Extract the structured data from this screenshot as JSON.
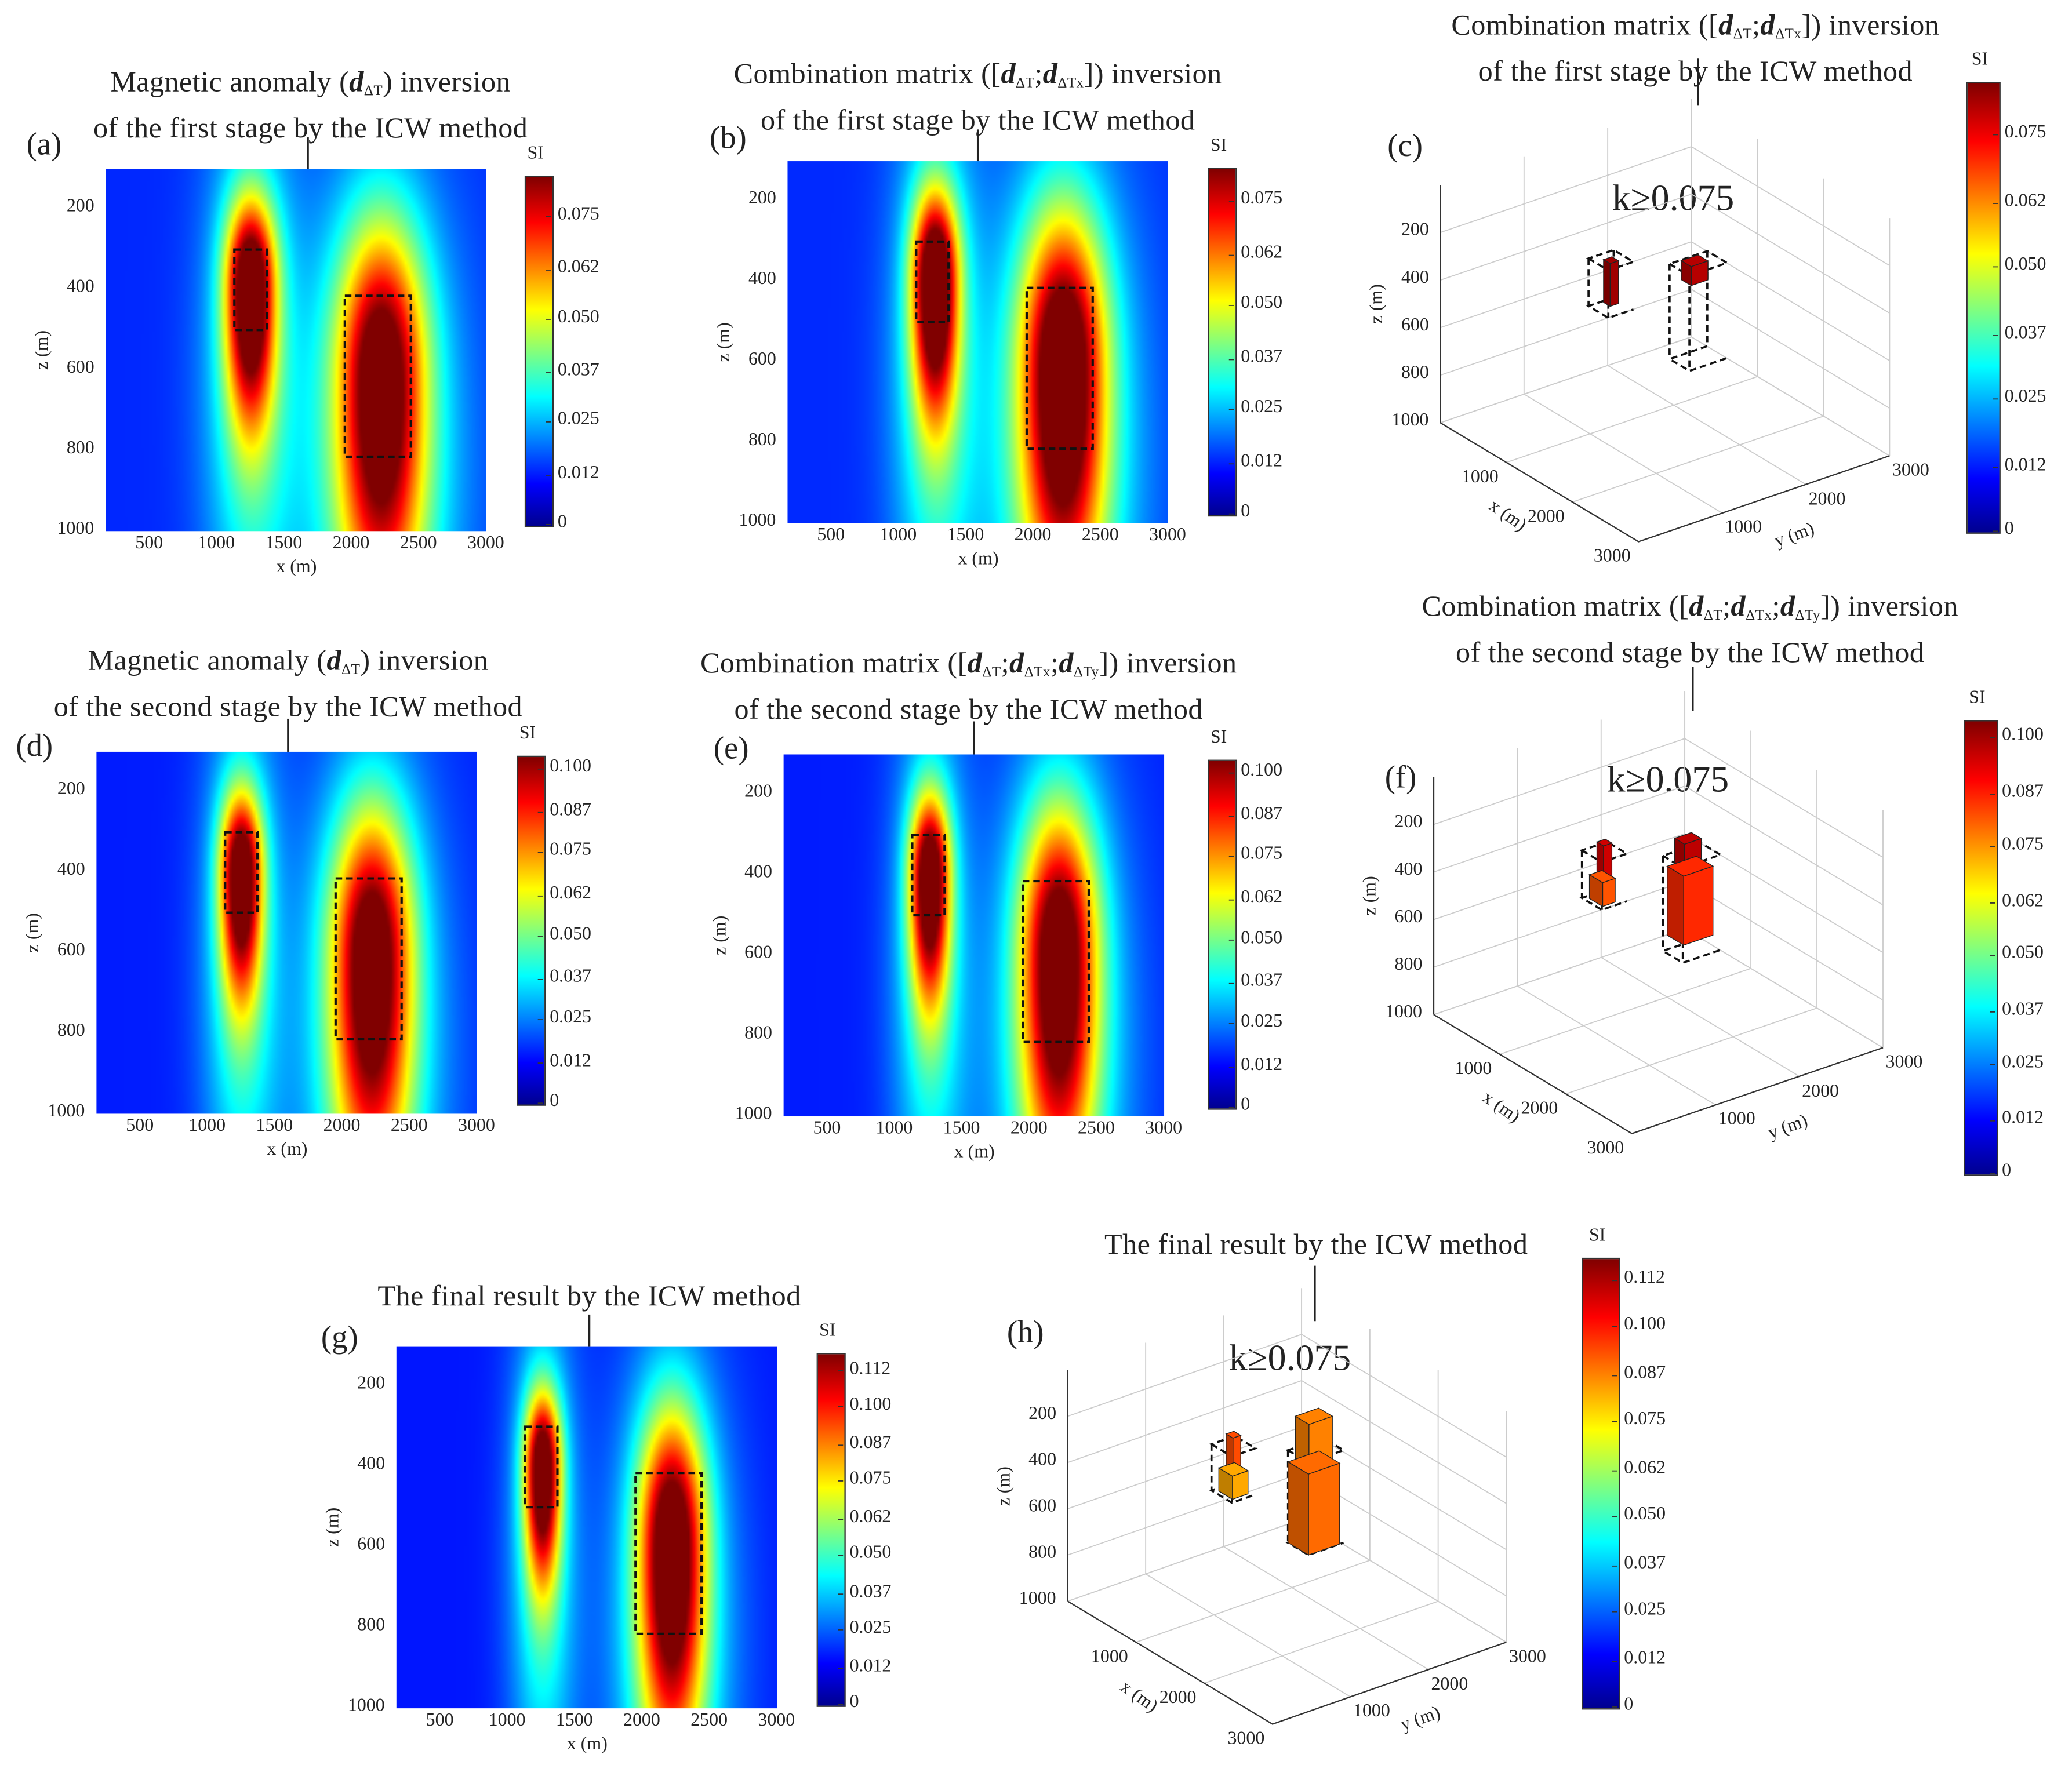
{
  "chart_data": [
    {
      "id": "a",
      "type": "heatmap",
      "label": "(a)",
      "title": [
        [
          {
            "t": "Magnetic anomaly ("
          },
          {
            "t": "d",
            "sub": "ΔT",
            "b": 1
          },
          {
            "t": ") inversion"
          }
        ],
        [
          {
            "t": "of the first stage by the ICW method"
          }
        ]
      ],
      "xlabel": "x (m)",
      "ylabel": "z (m)",
      "xlim": [
        175,
        3000
      ],
      "ylim": [
        100,
        1000
      ],
      "xticks": [
        "500",
        "1000",
        "1500",
        "2000",
        "2500",
        "3000"
      ],
      "yticks": [
        "200",
        "400",
        "600",
        "800",
        "1000"
      ],
      "colorbar": {
        "label": "SI",
        "ticks": [
          "0",
          "0.012",
          "0.025",
          "0.037",
          "0.050",
          "0.062",
          "0.075"
        ],
        "max": 0.085
      },
      "sources": [
        {
          "x": 1250,
          "z": 390,
          "sx": 130,
          "sz": 150,
          "amp": 0.08
        },
        {
          "x": 2220,
          "z": 610,
          "sx": 230,
          "sz": 260,
          "amp": 0.076
        }
      ],
      "boxes": [
        {
          "x": [
            1130,
            1370
          ],
          "z": [
            300,
            500
          ]
        },
        {
          "x": [
            1950,
            2440
          ],
          "z": [
            415,
            815
          ]
        }
      ]
    },
    {
      "id": "b",
      "type": "heatmap",
      "label": "(b)",
      "title": [
        [
          {
            "t": "Combination matrix (["
          },
          {
            "t": "d",
            "sub": "ΔT",
            "b": 1
          },
          {
            "t": ";"
          },
          {
            "t": "d",
            "sub": "ΔTx",
            "b": 1
          },
          {
            "t": "]) inversion"
          }
        ],
        [
          {
            "t": "of the first stage by the ICW method"
          }
        ]
      ],
      "xlabel": "x (m)",
      "ylabel": "z (m)",
      "xlim": [
        175,
        3000
      ],
      "ylim": [
        100,
        1000
      ],
      "xticks": [
        "500",
        "1000",
        "1500",
        "2000",
        "2500",
        "3000"
      ],
      "yticks": [
        "200",
        "400",
        "600",
        "800",
        "1000"
      ],
      "colorbar": {
        "label": "SI",
        "ticks": [
          "0",
          "0.012",
          "0.025",
          "0.037",
          "0.050",
          "0.062",
          "0.075"
        ],
        "max": 0.083
      },
      "sources": [
        {
          "x": 1270,
          "z": 390,
          "sx": 120,
          "sz": 150,
          "amp": 0.08
        },
        {
          "x": 2220,
          "z": 600,
          "sx": 220,
          "sz": 260,
          "amp": 0.078
        }
      ],
      "boxes": [
        {
          "x": [
            1130,
            1370
          ],
          "z": [
            300,
            500
          ]
        },
        {
          "x": [
            1950,
            2440
          ],
          "z": [
            415,
            815
          ]
        }
      ]
    },
    {
      "id": "c",
      "type": "3d-voxel",
      "label": "(c)",
      "title": [
        [
          {
            "t": "Combination matrix (["
          },
          {
            "t": "d",
            "sub": "ΔT",
            "b": 1
          },
          {
            "t": ";"
          },
          {
            "t": "d",
            "sub": "ΔTx",
            "b": 1
          },
          {
            "t": "]) inversion"
          }
        ],
        [
          {
            "t": "of the first stage by the ICW method"
          }
        ]
      ],
      "annotation": "k≥0.075",
      "xlabel": "x (m)",
      "ylabel": "y (m)",
      "zlabel": "z (m)",
      "xticks": [
        "1000",
        "2000",
        "3000"
      ],
      "yticks": [
        "1000",
        "2000",
        "3000"
      ],
      "zticks": [
        "200",
        "400",
        "600",
        "800",
        "1000"
      ],
      "colorbar": {
        "label": "SI",
        "ticks": [
          "0",
          "0.012",
          "0.025",
          "0.037",
          "0.050",
          "0.062",
          "0.075"
        ],
        "max": 0.085
      },
      "bodies": [
        {
          "x": [
            850,
            1150
          ],
          "y": [
            1100,
            1400
          ],
          "z": [
            300,
            500
          ]
        },
        {
          "x": [
            1000,
            1300
          ],
          "y": [
            1950,
            2400
          ],
          "z": [
            400,
            800
          ]
        }
      ],
      "voxels": [
        {
          "x": [
            950,
            1050
          ],
          "y": [
            1200,
            1300
          ],
          "z": [
            300,
            480
          ],
          "v": 0.082
        },
        {
          "x": [
            1050,
            1200
          ],
          "y": [
            2050,
            2250
          ],
          "z": [
            390,
            470
          ],
          "v": 0.08
        }
      ]
    },
    {
      "id": "d",
      "type": "heatmap",
      "label": "(d)",
      "title": [
        [
          {
            "t": "Magnetic anomaly ("
          },
          {
            "t": "d",
            "sub": "ΔT",
            "b": 1
          },
          {
            "t": ") inversion"
          }
        ],
        [
          {
            "t": "of the second stage by the ICW method"
          }
        ]
      ],
      "xlabel": "x (m)",
      "ylabel": "z (m)",
      "xlim": [
        175,
        3000
      ],
      "ylim": [
        100,
        1000
      ],
      "xticks": [
        "500",
        "1000",
        "1500",
        "2000",
        "2500",
        "3000"
      ],
      "yticks": [
        "200",
        "400",
        "600",
        "800",
        "1000"
      ],
      "colorbar": {
        "label": "SI",
        "ticks": [
          "0",
          "0.012",
          "0.025",
          "0.037",
          "0.050",
          "0.062",
          "0.075",
          "0.087",
          "0.100"
        ],
        "max": 0.104
      },
      "sources": [
        {
          "x": 1250,
          "z": 400,
          "sx": 110,
          "sz": 140,
          "amp": 0.095
        },
        {
          "x": 2220,
          "z": 600,
          "sx": 210,
          "sz": 250,
          "amp": 0.093
        }
      ],
      "boxes": [
        {
          "x": [
            1130,
            1370
          ],
          "z": [
            300,
            500
          ]
        },
        {
          "x": [
            1950,
            2440
          ],
          "z": [
            415,
            815
          ]
        }
      ]
    },
    {
      "id": "e",
      "type": "heatmap",
      "label": "(e)",
      "title": [
        [
          {
            "t": "Combination matrix (["
          },
          {
            "t": "d",
            "sub": "ΔT",
            "b": 1
          },
          {
            "t": ";"
          },
          {
            "t": "d",
            "sub": "ΔTx",
            "b": 1
          },
          {
            "t": ";"
          },
          {
            "t": "d",
            "sub": "ΔTy",
            "b": 1
          },
          {
            "t": "]) inversion"
          }
        ],
        [
          {
            "t": "of the second stage by the ICW method"
          }
        ]
      ],
      "xlabel": "x (m)",
      "ylabel": "z (m)",
      "xlim": [
        175,
        3000
      ],
      "ylim": [
        100,
        1000
      ],
      "xticks": [
        "500",
        "1000",
        "1500",
        "2000",
        "2500",
        "3000"
      ],
      "yticks": [
        "200",
        "400",
        "600",
        "800",
        "1000"
      ],
      "colorbar": {
        "label": "SI",
        "ticks": [
          "0",
          "0.012",
          "0.025",
          "0.037",
          "0.050",
          "0.062",
          "0.075",
          "0.087",
          "0.100"
        ],
        "max": 0.104
      },
      "sources": [
        {
          "x": 1260,
          "z": 400,
          "sx": 105,
          "sz": 140,
          "amp": 0.095
        },
        {
          "x": 2220,
          "z": 590,
          "sx": 200,
          "sz": 250,
          "amp": 0.094
        }
      ],
      "boxes": [
        {
          "x": [
            1130,
            1370
          ],
          "z": [
            300,
            500
          ]
        },
        {
          "x": [
            1950,
            2440
          ],
          "z": [
            415,
            815
          ]
        }
      ]
    },
    {
      "id": "f",
      "type": "3d-voxel",
      "label": "(f)",
      "title": [
        [
          {
            "t": "Combination matrix (["
          },
          {
            "t": "d",
            "sub": "ΔT",
            "b": 1
          },
          {
            "t": ";"
          },
          {
            "t": "d",
            "sub": "ΔTx",
            "b": 1
          },
          {
            "t": ";"
          },
          {
            "t": "d",
            "sub": "ΔTy",
            "b": 1
          },
          {
            "t": "]) inversion"
          }
        ],
        [
          {
            "t": "of the second stage by the ICW method"
          }
        ]
      ],
      "annotation": "k≥0.075",
      "xlabel": "x (m)",
      "ylabel": "y (m)",
      "zlabel": "z (m)",
      "xticks": [
        "1000",
        "2000",
        "3000"
      ],
      "yticks": [
        "1000",
        "2000",
        "3000"
      ],
      "zticks": [
        "200",
        "400",
        "600",
        "800",
        "1000"
      ],
      "colorbar": {
        "label": "SI",
        "ticks": [
          "0",
          "0.012",
          "0.025",
          "0.037",
          "0.050",
          "0.062",
          "0.075",
          "0.087",
          "0.100"
        ],
        "max": 0.104
      },
      "bodies": [
        {
          "x": [
            850,
            1150
          ],
          "y": [
            1100,
            1400
          ],
          "z": [
            300,
            500
          ]
        },
        {
          "x": [
            1000,
            1300
          ],
          "y": [
            1950,
            2400
          ],
          "z": [
            400,
            800
          ]
        }
      ],
      "voxels": [
        {
          "x": [
            950,
            1050
          ],
          "y": [
            1200,
            1300
          ],
          "z": [
            260,
            400
          ],
          "v": 0.095
        },
        {
          "x": [
            900,
            1100
          ],
          "y": [
            1150,
            1300
          ],
          "z": [
            400,
            500
          ],
          "v": 0.08
        },
        {
          "x": [
            1050,
            1200
          ],
          "y": [
            2050,
            2250
          ],
          "z": [
            330,
            450
          ],
          "v": 0.097
        },
        {
          "x": [
            1000,
            1250
          ],
          "y": [
            2000,
            2350
          ],
          "z": [
            450,
            740
          ],
          "v": 0.085
        }
      ]
    },
    {
      "id": "g",
      "type": "heatmap",
      "label": "(g)",
      "title": [
        [
          {
            "t": "The final result by the ICW method"
          }
        ]
      ],
      "xlabel": "x (m)",
      "ylabel": "z (m)",
      "xlim": [
        175,
        3000
      ],
      "ylim": [
        100,
        1000
      ],
      "xticks": [
        "500",
        "1000",
        "1500",
        "2000",
        "2500",
        "3000"
      ],
      "yticks": [
        "200",
        "400",
        "600",
        "800",
        "1000"
      ],
      "colorbar": {
        "label": "SI",
        "ticks": [
          "0",
          "0.012",
          "0.025",
          "0.037",
          "0.050",
          "0.062",
          "0.075",
          "0.087",
          "0.100",
          "0.112"
        ],
        "max": 0.118
      },
      "sources": [
        {
          "x": 1260,
          "z": 400,
          "sx": 95,
          "sz": 130,
          "amp": 0.108
        },
        {
          "x": 2220,
          "z": 590,
          "sx": 175,
          "sz": 230,
          "amp": 0.11
        }
      ],
      "boxes": [
        {
          "x": [
            1130,
            1370
          ],
          "z": [
            300,
            500
          ]
        },
        {
          "x": [
            1950,
            2440
          ],
          "z": [
            415,
            815
          ]
        }
      ]
    },
    {
      "id": "h",
      "type": "3d-voxel",
      "label": "(h)",
      "title": [
        [
          {
            "t": "The final result by the ICW method"
          }
        ]
      ],
      "annotation": "k≥0.075",
      "xlabel": "x (m)",
      "ylabel": "y (m)",
      "zlabel": "z (m)",
      "xticks": [
        "1000",
        "2000",
        "3000"
      ],
      "yticks": [
        "1000",
        "2000",
        "3000"
      ],
      "zticks": [
        "200",
        "400",
        "600",
        "800",
        "1000"
      ],
      "colorbar": {
        "label": "SI",
        "ticks": [
          "0",
          "0.012",
          "0.025",
          "0.037",
          "0.050",
          "0.062",
          "0.075",
          "0.087",
          "0.100",
          "0.112"
        ],
        "max": 0.118
      },
      "bodies": [
        {
          "x": [
            850,
            1150
          ],
          "y": [
            1100,
            1400
          ],
          "z": [
            300,
            500
          ]
        },
        {
          "x": [
            1000,
            1300
          ],
          "y": [
            1950,
            2400
          ],
          "z": [
            400,
            800
          ]
        }
      ],
      "voxels": [
        {
          "x": [
            950,
            1050
          ],
          "y": [
            1200,
            1300
          ],
          "z": [
            250,
            400
          ],
          "v": 0.092
        },
        {
          "x": [
            900,
            1100
          ],
          "y": [
            1150,
            1350
          ],
          "z": [
            400,
            500
          ],
          "v": 0.08
        },
        {
          "x": [
            1050,
            1250
          ],
          "y": [
            2000,
            2300
          ],
          "z": [
            250,
            450
          ],
          "v": 0.085
        },
        {
          "x": [
            1000,
            1300
          ],
          "y": [
            1950,
            2350
          ],
          "z": [
            450,
            800
          ],
          "v": 0.088
        }
      ]
    }
  ]
}
